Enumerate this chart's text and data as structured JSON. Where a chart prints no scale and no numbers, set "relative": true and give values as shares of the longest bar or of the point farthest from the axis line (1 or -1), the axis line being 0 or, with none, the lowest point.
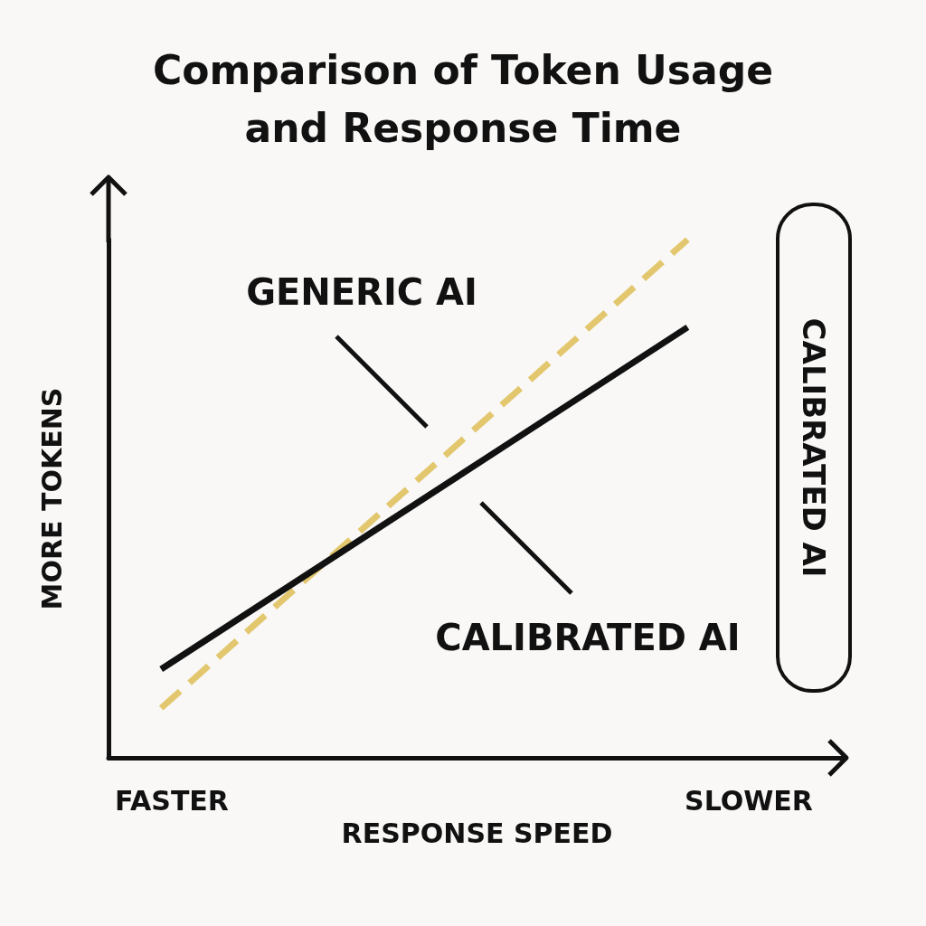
{
  "chart_data": {
    "type": "line",
    "title": "Comparison of Token Usage\nand Response Time",
    "xlabel": "RESPONSE SPEED",
    "ylabel": "MORE TOKENS",
    "relative": true,
    "categories": [
      null,
      null,
      null,
      null,
      null,
      null,
      null
    ],
    "series": [
      {
        "name": "GENERIC AI",
        "color": "#e2c76e",
        "line_style": "dashed",
        "values": [
          0.096,
          null,
          null,
          null,
          null,
          1,
          null
        ]
      },
      {
        "name": "CALIBRATED AI",
        "color": "#111111",
        "line_style": "solid",
        "values": [
          0.171,
          null,
          null,
          null,
          null,
          0.831,
          null
        ]
      }
    ],
    "annotations": [
      "FASTER",
      "SLOWER",
      "CALIBRATED AI"
    ],
    "marker": "none",
    "grid": false,
    "legend": false
  }
}
